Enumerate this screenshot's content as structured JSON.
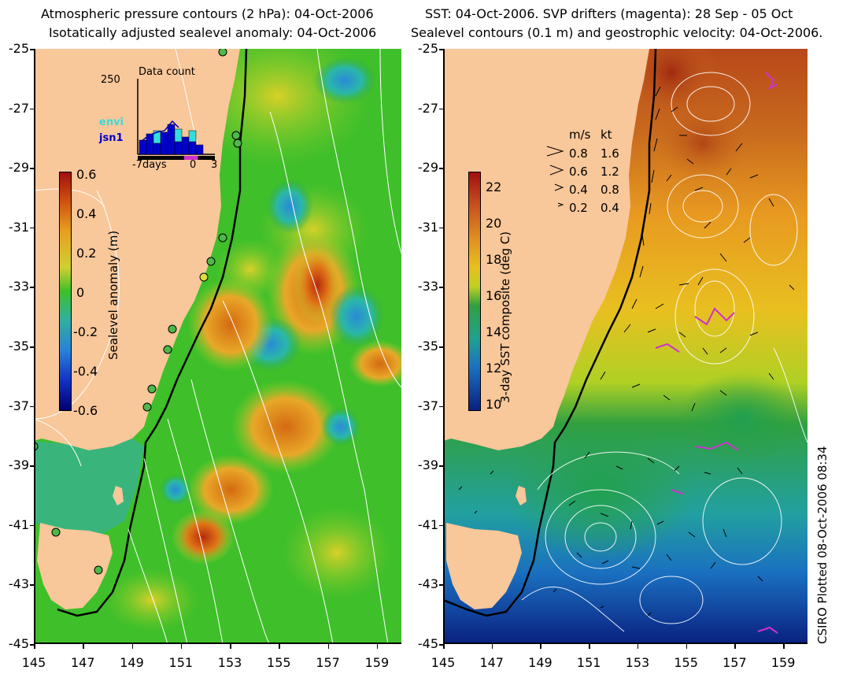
{
  "left_panel": {
    "title_line1": "Atmospheric pressure contours (2 hPa): 04-Oct-2006",
    "title_line2": "Isotatically adjusted sealevel anomaly: 04-Oct-2006",
    "colorbar": {
      "label": "Sealevel anomaly (m)",
      "ticks": [
        "0.6",
        "0.4",
        "0.2",
        "0",
        "-0.2",
        "-0.4",
        "-0.6"
      ]
    },
    "inset": {
      "title": "Data count",
      "ymax_label": "250",
      "legend_envi": "envi",
      "legend_jsn1": "jsn1",
      "xaxis_left": "-7days",
      "xaxis_mid": "0",
      "xaxis_right": "3",
      "colors": {
        "envi": "#33dddd",
        "jsn1": "#0000cc"
      }
    }
  },
  "right_panel": {
    "title_line1": "SST: 04-Oct-2006. SVP drifters (magenta): 28 Sep - 05 Oct",
    "title_line2": "Sealevel contours (0.1 m) and geostrophic velocity: 04-Oct-2006.",
    "colorbar": {
      "label": "3-day SST composite (deg C)",
      "ticks": [
        "22",
        "20",
        "18",
        "16",
        "14",
        "12",
        "10"
      ]
    },
    "velocity_legend": {
      "header_ms": "m/s",
      "header_kt": "kt",
      "rows": [
        {
          "ms": "0.8",
          "kt": "1.6"
        },
        {
          "ms": "0.6",
          "kt": "1.2"
        },
        {
          "ms": "0.4",
          "kt": "0.8"
        },
        {
          "ms": "0.2",
          "kt": "0.4"
        }
      ]
    }
  },
  "y_ticks": [
    "-25",
    "-27",
    "-29",
    "-31",
    "-33",
    "-35",
    "-37",
    "-39",
    "-41",
    "-43",
    "-45"
  ],
  "x_ticks": [
    "145",
    "147",
    "149",
    "151",
    "153",
    "155",
    "157",
    "159"
  ],
  "credit": "CSIRO Plotted 08-Oct-2006 08:34",
  "colors": {
    "land": "#f8c79a",
    "ocean_green": "#3fbf2a",
    "coast": "#000000",
    "contours": "#ffffff",
    "drifters": "#cc33cc"
  }
}
